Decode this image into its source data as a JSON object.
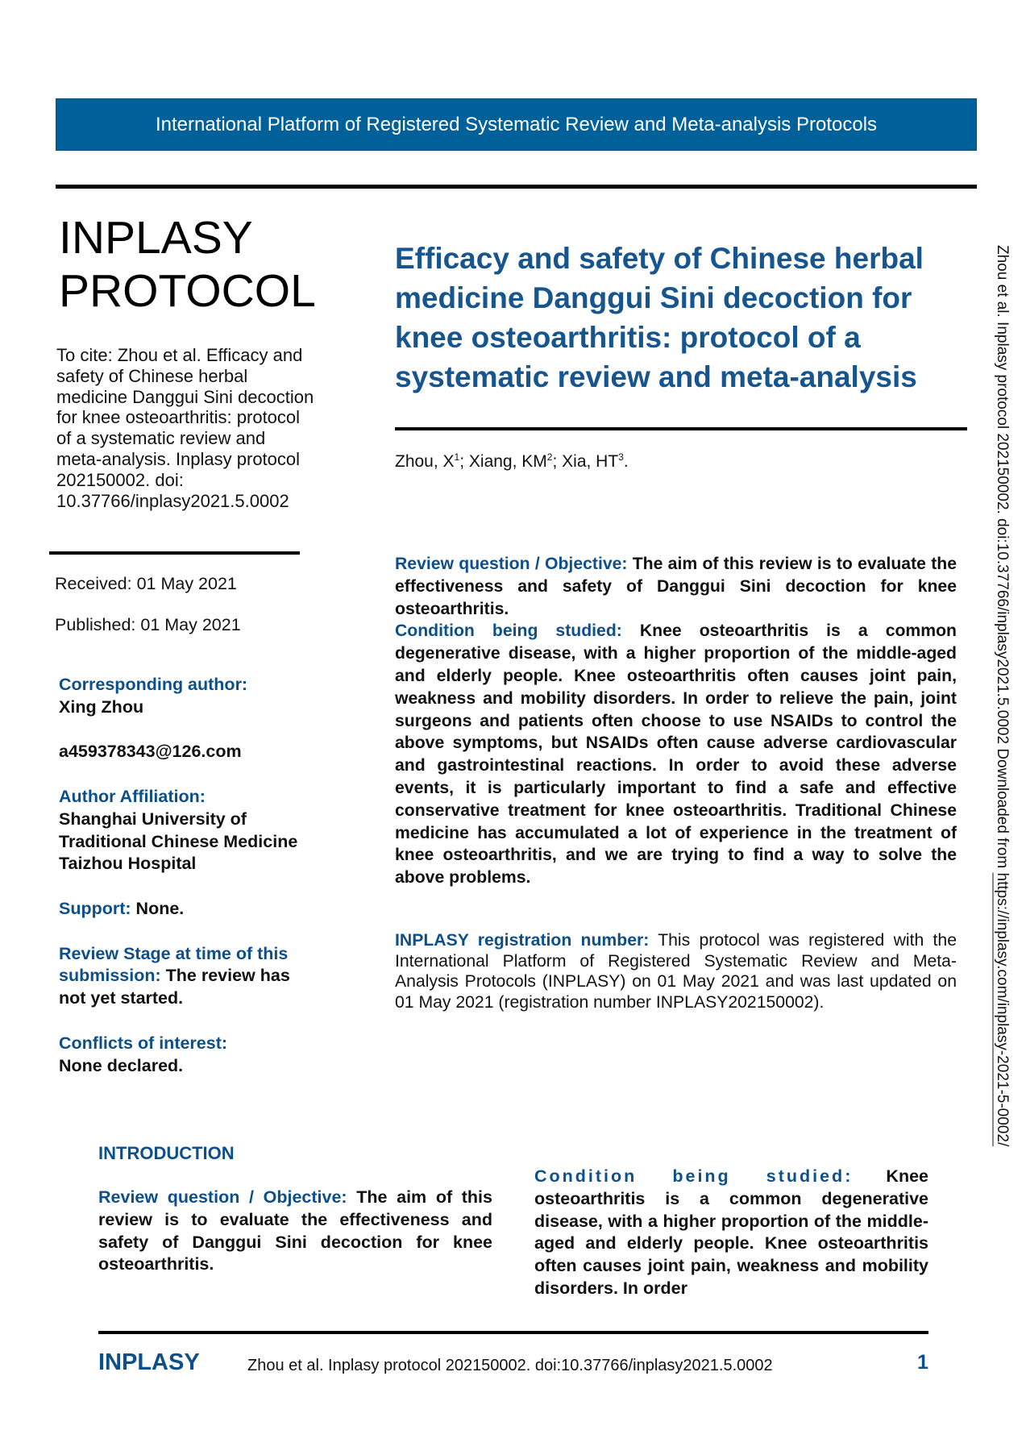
{
  "banner": "International Platform of Registered Systematic Review and Meta-analysis Protocols",
  "brand": {
    "line1": "INPLASY",
    "line2": "PROTOCOL"
  },
  "title": "Efficacy and safety of Chinese herbal medicine Danggui Sini decoction for knee osteoarthritis: protocol of a systematic review and meta-analysis",
  "cite": "To cite: Zhou et al. Efficacy and safety of Chinese herbal medicine Danggui Sini decoction for knee osteoarthritis: protocol of a systematic review and meta-analysis. Inplasy protocol 202150002. doi: 10.37766/inplasy2021.5.0002",
  "authors": {
    "a1": "Zhou, X",
    "s1": "1",
    "a2": "; Xiang, KM",
    "s2": "2",
    "a3": "; Xia, HT",
    "s3": "3",
    "end": "."
  },
  "received": "Received: 01 May 2021",
  "published": "Published: 01 May 2021",
  "side": {
    "corr_label": "Corresponding author:",
    "corr_name": "Xing Zhou",
    "email": "a459378343@126.com",
    "aff_label": "Author Affiliation:",
    "aff_value": "Shanghai University of Traditional Chinese Medicine Taizhou Hospital",
    "support_label": "Support:",
    "support_value": "None.",
    "stage_label": "Review Stage at time of this submission:",
    "stage_value": "The review has not yet started.",
    "coi_label": "Conflicts of interest:",
    "coi_value": "None declared."
  },
  "abstract": {
    "rq_label": "Review question / Objective:",
    "rq_text": "The aim of this review is to evaluate the effectiveness and safety of Danggui Sini decoction for knee osteoarthritis.",
    "cond_label": "Condition being studied:",
    "cond_text": "Knee osteoarthritis is a common degenerative disease, with a higher proportion of the middle-aged and elderly people. Knee osteoarthritis often causes joint pain, weakness and mobility disorders. In order to relieve the pain, joint surgeons and patients often choose to use NSAIDs to control the above symptoms, but NSAIDs often cause adverse cardiovascular and gastrointestinal reactions. In order to avoid these adverse events, it is particularly important to find a safe and effective conservative treatment for knee osteoarthritis. Traditional Chinese medicine has accumulated a lot of experience in the treatment of knee osteoarthritis, and we are trying to find a way to solve the above problems.",
    "reg_label": "INPLASY registration number:",
    "reg_text": "This protocol was registered with the International Platform of Registered Systematic Review and Meta-Analysis Protocols (INPLASY) on 01 May 2021 and was last updated on 01 May 2021 (registration number INPLASY202150002)."
  },
  "intro": {
    "heading": "INTRODUCTION",
    "rq_label": "Review question / Objective:",
    "rq_text": "The aim of this review is to evaluate the effectiveness and safety of Danggui Sini decoction for knee osteoarthritis.",
    "cond_label": "Condition being studied:",
    "cond_text": "Knee osteoarthritis is a common degenerative disease, with a higher proportion of the middle-aged and elderly people. Knee osteoarthritis often causes joint pain, weakness and mobility disorders. In order"
  },
  "footer": {
    "brand": "INPLASY",
    "cite": "Zhou et al. Inplasy protocol 202150002. doi:10.37766/inplasy2021.5.0002",
    "page": "1"
  },
  "vertical": {
    "text": "Zhou et al. Inplasy protocol 202150002. doi:10.37766/inplasy2021.5.0002 Downloaded from ",
    "link": "https://inplasy.com/inplasy-2021-5-0002/"
  },
  "colors": {
    "banner": "#00609a",
    "heading": "#0d4f8b",
    "title": "#17558f"
  }
}
